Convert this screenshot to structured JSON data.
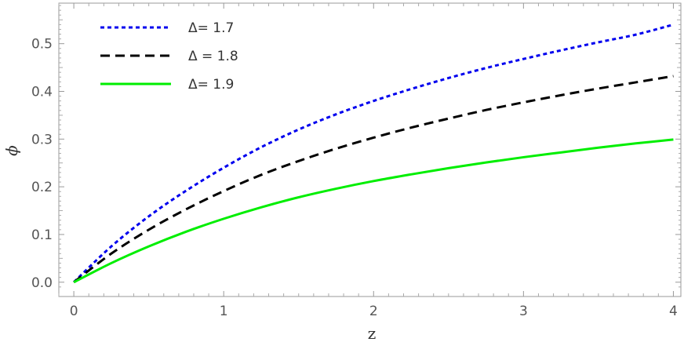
{
  "chart_data": {
    "type": "line",
    "title": "",
    "xlabel": "z",
    "ylabel": "ϕ",
    "xlim": [
      -0.1,
      4.05
    ],
    "ylim": [
      -0.03,
      0.585
    ],
    "xticks": [
      0,
      1,
      2,
      3,
      4
    ],
    "xtick_labels": [
      "0",
      "1",
      "2",
      "3",
      "4"
    ],
    "yticks": [
      0.0,
      0.1,
      0.2,
      0.3,
      0.4,
      0.5
    ],
    "ytick_labels": [
      "0.0",
      "0.1",
      "0.2",
      "0.3",
      "0.4",
      "0.5"
    ],
    "grid": false,
    "legend_position": "top-left",
    "series": [
      {
        "name": "Δ= 1.7",
        "style": "dotted",
        "color": "#0000ee",
        "x": [
          0,
          0.25,
          0.5,
          0.75,
          1.0,
          1.25,
          1.5,
          1.75,
          2.0,
          2.25,
          2.5,
          2.75,
          3.0,
          3.25,
          3.5,
          3.75,
          4.0
        ],
        "y": [
          0,
          0.075,
          0.138,
          0.192,
          0.24,
          0.283,
          0.32,
          0.352,
          0.38,
          0.405,
          0.428,
          0.449,
          0.468,
          0.486,
          0.503,
          0.519,
          0.54
        ]
      },
      {
        "name": "Δ = 1.8",
        "style": "dashed",
        "color": "#000000",
        "x": [
          0,
          0.25,
          0.5,
          0.75,
          1.0,
          1.25,
          1.5,
          1.75,
          2.0,
          2.25,
          2.5,
          2.75,
          3.0,
          3.25,
          3.5,
          3.75,
          4.0
        ],
        "y": [
          0,
          0.06,
          0.11,
          0.153,
          0.191,
          0.225,
          0.254,
          0.28,
          0.303,
          0.324,
          0.343,
          0.361,
          0.377,
          0.392,
          0.406,
          0.419,
          0.432
        ]
      },
      {
        "name": "Δ= 1.9",
        "style": "solid",
        "color": "#00ee00",
        "x": [
          0,
          0.25,
          0.5,
          0.75,
          1.0,
          1.25,
          1.5,
          1.75,
          2.0,
          2.25,
          2.5,
          2.75,
          3.0,
          3.25,
          3.5,
          3.75,
          4.0
        ],
        "y": [
          0,
          0.04,
          0.075,
          0.106,
          0.133,
          0.157,
          0.178,
          0.196,
          0.212,
          0.226,
          0.239,
          0.251,
          0.262,
          0.272,
          0.282,
          0.291,
          0.299
        ]
      }
    ]
  }
}
